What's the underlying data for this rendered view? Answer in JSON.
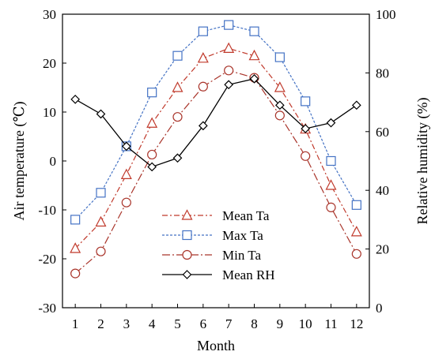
{
  "chart_data": {
    "type": "line",
    "x": [
      1,
      2,
      3,
      4,
      5,
      6,
      7,
      8,
      9,
      10,
      11,
      12
    ],
    "xlabel": "Month",
    "ylabel_left": "Air temperature (℃)",
    "ylabel_right": "Relative humidity (%)",
    "ylim_left": [
      -30,
      30
    ],
    "yticks_left": [
      -30,
      -20,
      -10,
      0,
      10,
      20,
      30
    ],
    "ylim_right": [
      0,
      100
    ],
    "yticks_right": [
      0,
      20,
      40,
      60,
      80,
      100
    ],
    "grid": false,
    "legend_position": "bottom-left",
    "series": [
      {
        "name": "Mean Ta",
        "axis": "left",
        "marker": "triangle",
        "line_style": "dash-dot",
        "color": "#c0392b",
        "values": [
          -17.9,
          -12.5,
          -2.8,
          7.7,
          15.0,
          21.0,
          23.0,
          21.5,
          15.0,
          6.5,
          -5.0,
          -14.5
        ]
      },
      {
        "name": "Max Ta",
        "axis": "left",
        "marker": "square",
        "line_style": "dotted",
        "color": "#4472c4",
        "values": [
          -12.0,
          -6.5,
          3.0,
          14.0,
          21.5,
          26.5,
          27.8,
          26.5,
          21.2,
          12.2,
          0.0,
          -9.0
        ]
      },
      {
        "name": "Min Ta",
        "axis": "left",
        "marker": "circle",
        "line_style": "long-dash-dot",
        "color": "#a9342a",
        "values": [
          -23.0,
          -18.5,
          -8.5,
          1.3,
          9.0,
          15.2,
          18.5,
          17.0,
          9.3,
          1.0,
          -9.5,
          -19.0
        ]
      },
      {
        "name": "Mean RH",
        "axis": "right",
        "marker": "diamond",
        "line_style": "solid",
        "color": "#000000",
        "values": [
          71,
          66,
          55,
          48,
          51,
          62,
          76,
          78,
          69,
          61,
          63,
          69
        ]
      }
    ]
  }
}
